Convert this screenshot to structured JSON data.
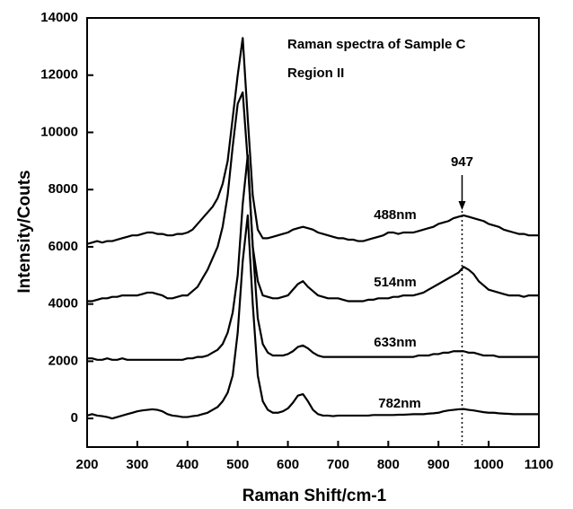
{
  "chart_data": {
    "type": "line",
    "title": "Raman spectra of Sample C",
    "subtitle": "Region II",
    "x_label": "Raman Shift/cm-1",
    "y_label": "Intensity/Couts",
    "xlim": [
      200,
      1100
    ],
    "ylim": [
      -1000,
      14000
    ],
    "xticks": [
      200,
      300,
      400,
      500,
      600,
      700,
      800,
      900,
      1000,
      1100
    ],
    "yticks": [
      0,
      2000,
      4000,
      6000,
      8000,
      10000,
      12000,
      14000
    ],
    "x": [
      200,
      210,
      220,
      230,
      240,
      250,
      260,
      270,
      280,
      290,
      300,
      310,
      320,
      330,
      340,
      350,
      360,
      370,
      380,
      390,
      400,
      410,
      420,
      430,
      440,
      450,
      460,
      470,
      480,
      490,
      500,
      510,
      520,
      530,
      540,
      550,
      560,
      570,
      580,
      590,
      600,
      610,
      620,
      630,
      640,
      650,
      660,
      670,
      680,
      690,
      700,
      710,
      720,
      730,
      740,
      750,
      760,
      770,
      780,
      790,
      800,
      810,
      820,
      830,
      840,
      850,
      860,
      870,
      880,
      890,
      900,
      910,
      920,
      930,
      940,
      950,
      960,
      970,
      980,
      990,
      1000,
      1010,
      1020,
      1030,
      1040,
      1050,
      1060,
      1070,
      1080,
      1090,
      1100
    ],
    "series": [
      {
        "name": "488nm",
        "color": "#000000",
        "values": [
          6100,
          6150,
          6200,
          6150,
          6200,
          6200,
          6250,
          6300,
          6350,
          6400,
          6400,
          6450,
          6500,
          6500,
          6450,
          6450,
          6400,
          6400,
          6450,
          6450,
          6500,
          6600,
          6800,
          7000,
          7200,
          7400,
          7700,
          8200,
          9000,
          10500,
          12000,
          13300,
          10500,
          7800,
          6600,
          6300,
          6300,
          6350,
          6400,
          6450,
          6500,
          6600,
          6650,
          6700,
          6650,
          6600,
          6500,
          6450,
          6400,
          6350,
          6300,
          6300,
          6250,
          6250,
          6200,
          6200,
          6250,
          6300,
          6350,
          6400,
          6500,
          6500,
          6450,
          6500,
          6500,
          6500,
          6550,
          6600,
          6650,
          6700,
          6800,
          6850,
          6900,
          7000,
          7050,
          7100,
          7050,
          7000,
          6950,
          6900,
          6800,
          6750,
          6700,
          6600,
          6550,
          6500,
          6450,
          6450,
          6400,
          6400,
          6400
        ]
      },
      {
        "name": "514nm",
        "color": "#000000",
        "values": [
          4100,
          4100,
          4150,
          4200,
          4200,
          4250,
          4250,
          4300,
          4300,
          4300,
          4300,
          4350,
          4400,
          4400,
          4350,
          4300,
          4200,
          4200,
          4250,
          4300,
          4300,
          4450,
          4600,
          4900,
          5200,
          5600,
          6000,
          6700,
          7800,
          9500,
          11000,
          11400,
          9000,
          6000,
          4800,
          4300,
          4250,
          4200,
          4200,
          4250,
          4300,
          4500,
          4700,
          4800,
          4600,
          4450,
          4300,
          4250,
          4200,
          4200,
          4200,
          4150,
          4100,
          4100,
          4100,
          4100,
          4150,
          4150,
          4200,
          4200,
          4200,
          4250,
          4250,
          4300,
          4300,
          4300,
          4350,
          4400,
          4500,
          4600,
          4700,
          4800,
          4900,
          5000,
          5100,
          5300,
          5200,
          5050,
          4800,
          4650,
          4500,
          4450,
          4400,
          4350,
          4300,
          4300,
          4300,
          4250,
          4300,
          4300,
          4300
        ]
      },
      {
        "name": "633nm",
        "color": "#000000",
        "values": [
          2100,
          2100,
          2050,
          2050,
          2100,
          2050,
          2050,
          2100,
          2050,
          2050,
          2050,
          2050,
          2050,
          2050,
          2050,
          2050,
          2050,
          2050,
          2050,
          2050,
          2100,
          2100,
          2150,
          2150,
          2200,
          2300,
          2400,
          2600,
          3000,
          3700,
          5000,
          7500,
          9200,
          6000,
          3500,
          2600,
          2300,
          2200,
          2200,
          2200,
          2250,
          2350,
          2500,
          2550,
          2450,
          2300,
          2200,
          2150,
          2150,
          2150,
          2150,
          2150,
          2150,
          2150,
          2150,
          2150,
          2150,
          2150,
          2150,
          2150,
          2150,
          2150,
          2150,
          2150,
          2150,
          2150,
          2200,
          2200,
          2200,
          2250,
          2250,
          2300,
          2300,
          2350,
          2350,
          2350,
          2300,
          2300,
          2250,
          2200,
          2200,
          2200,
          2150,
          2150,
          2150,
          2150,
          2150,
          2150,
          2150,
          2150,
          2150
        ]
      },
      {
        "name": "782nm",
        "color": "#000000",
        "values": [
          100,
          150,
          100,
          80,
          50,
          0,
          50,
          100,
          150,
          200,
          250,
          280,
          300,
          320,
          300,
          250,
          150,
          100,
          80,
          50,
          50,
          80,
          100,
          150,
          200,
          300,
          400,
          600,
          900,
          1500,
          3000,
          5500,
          7100,
          4000,
          1500,
          600,
          300,
          200,
          200,
          250,
          350,
          550,
          800,
          850,
          600,
          300,
          150,
          100,
          100,
          80,
          100,
          100,
          100,
          100,
          100,
          100,
          100,
          120,
          120,
          120,
          120,
          120,
          130,
          130,
          140,
          150,
          150,
          150,
          170,
          180,
          200,
          250,
          280,
          300,
          320,
          330,
          300,
          280,
          250,
          220,
          200,
          200,
          180,
          170,
          160,
          150,
          150,
          150,
          150,
          150,
          150
        ]
      }
    ],
    "annotations": [
      {
        "text": "947",
        "x": 947
      }
    ]
  }
}
